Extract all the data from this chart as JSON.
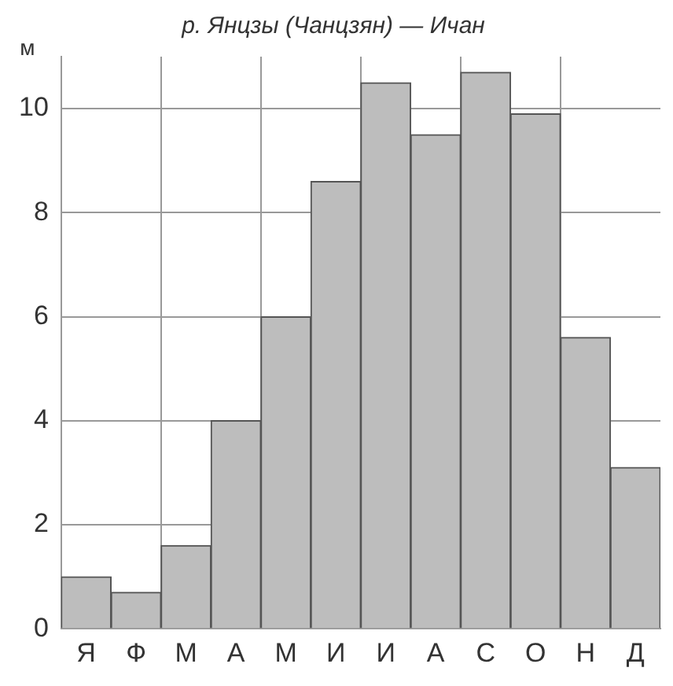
{
  "chart_data": {
    "type": "bar",
    "title": "р. Янцзы (Чанцзян) — Ичан",
    "ylabel": "м",
    "categories": [
      "Я",
      "Ф",
      "М",
      "А",
      "М",
      "И",
      "И",
      "А",
      "С",
      "О",
      "Н",
      "Д"
    ],
    "values": [
      1.0,
      0.7,
      1.6,
      4.0,
      6.0,
      8.6,
      10.5,
      9.5,
      10.7,
      9.9,
      5.6,
      3.1
    ],
    "color": "#bdbdbd",
    "ylim": [
      0,
      11
    ],
    "yticks": [
      0,
      2,
      4,
      6,
      8,
      10
    ],
    "grid": true,
    "legend": false
  }
}
